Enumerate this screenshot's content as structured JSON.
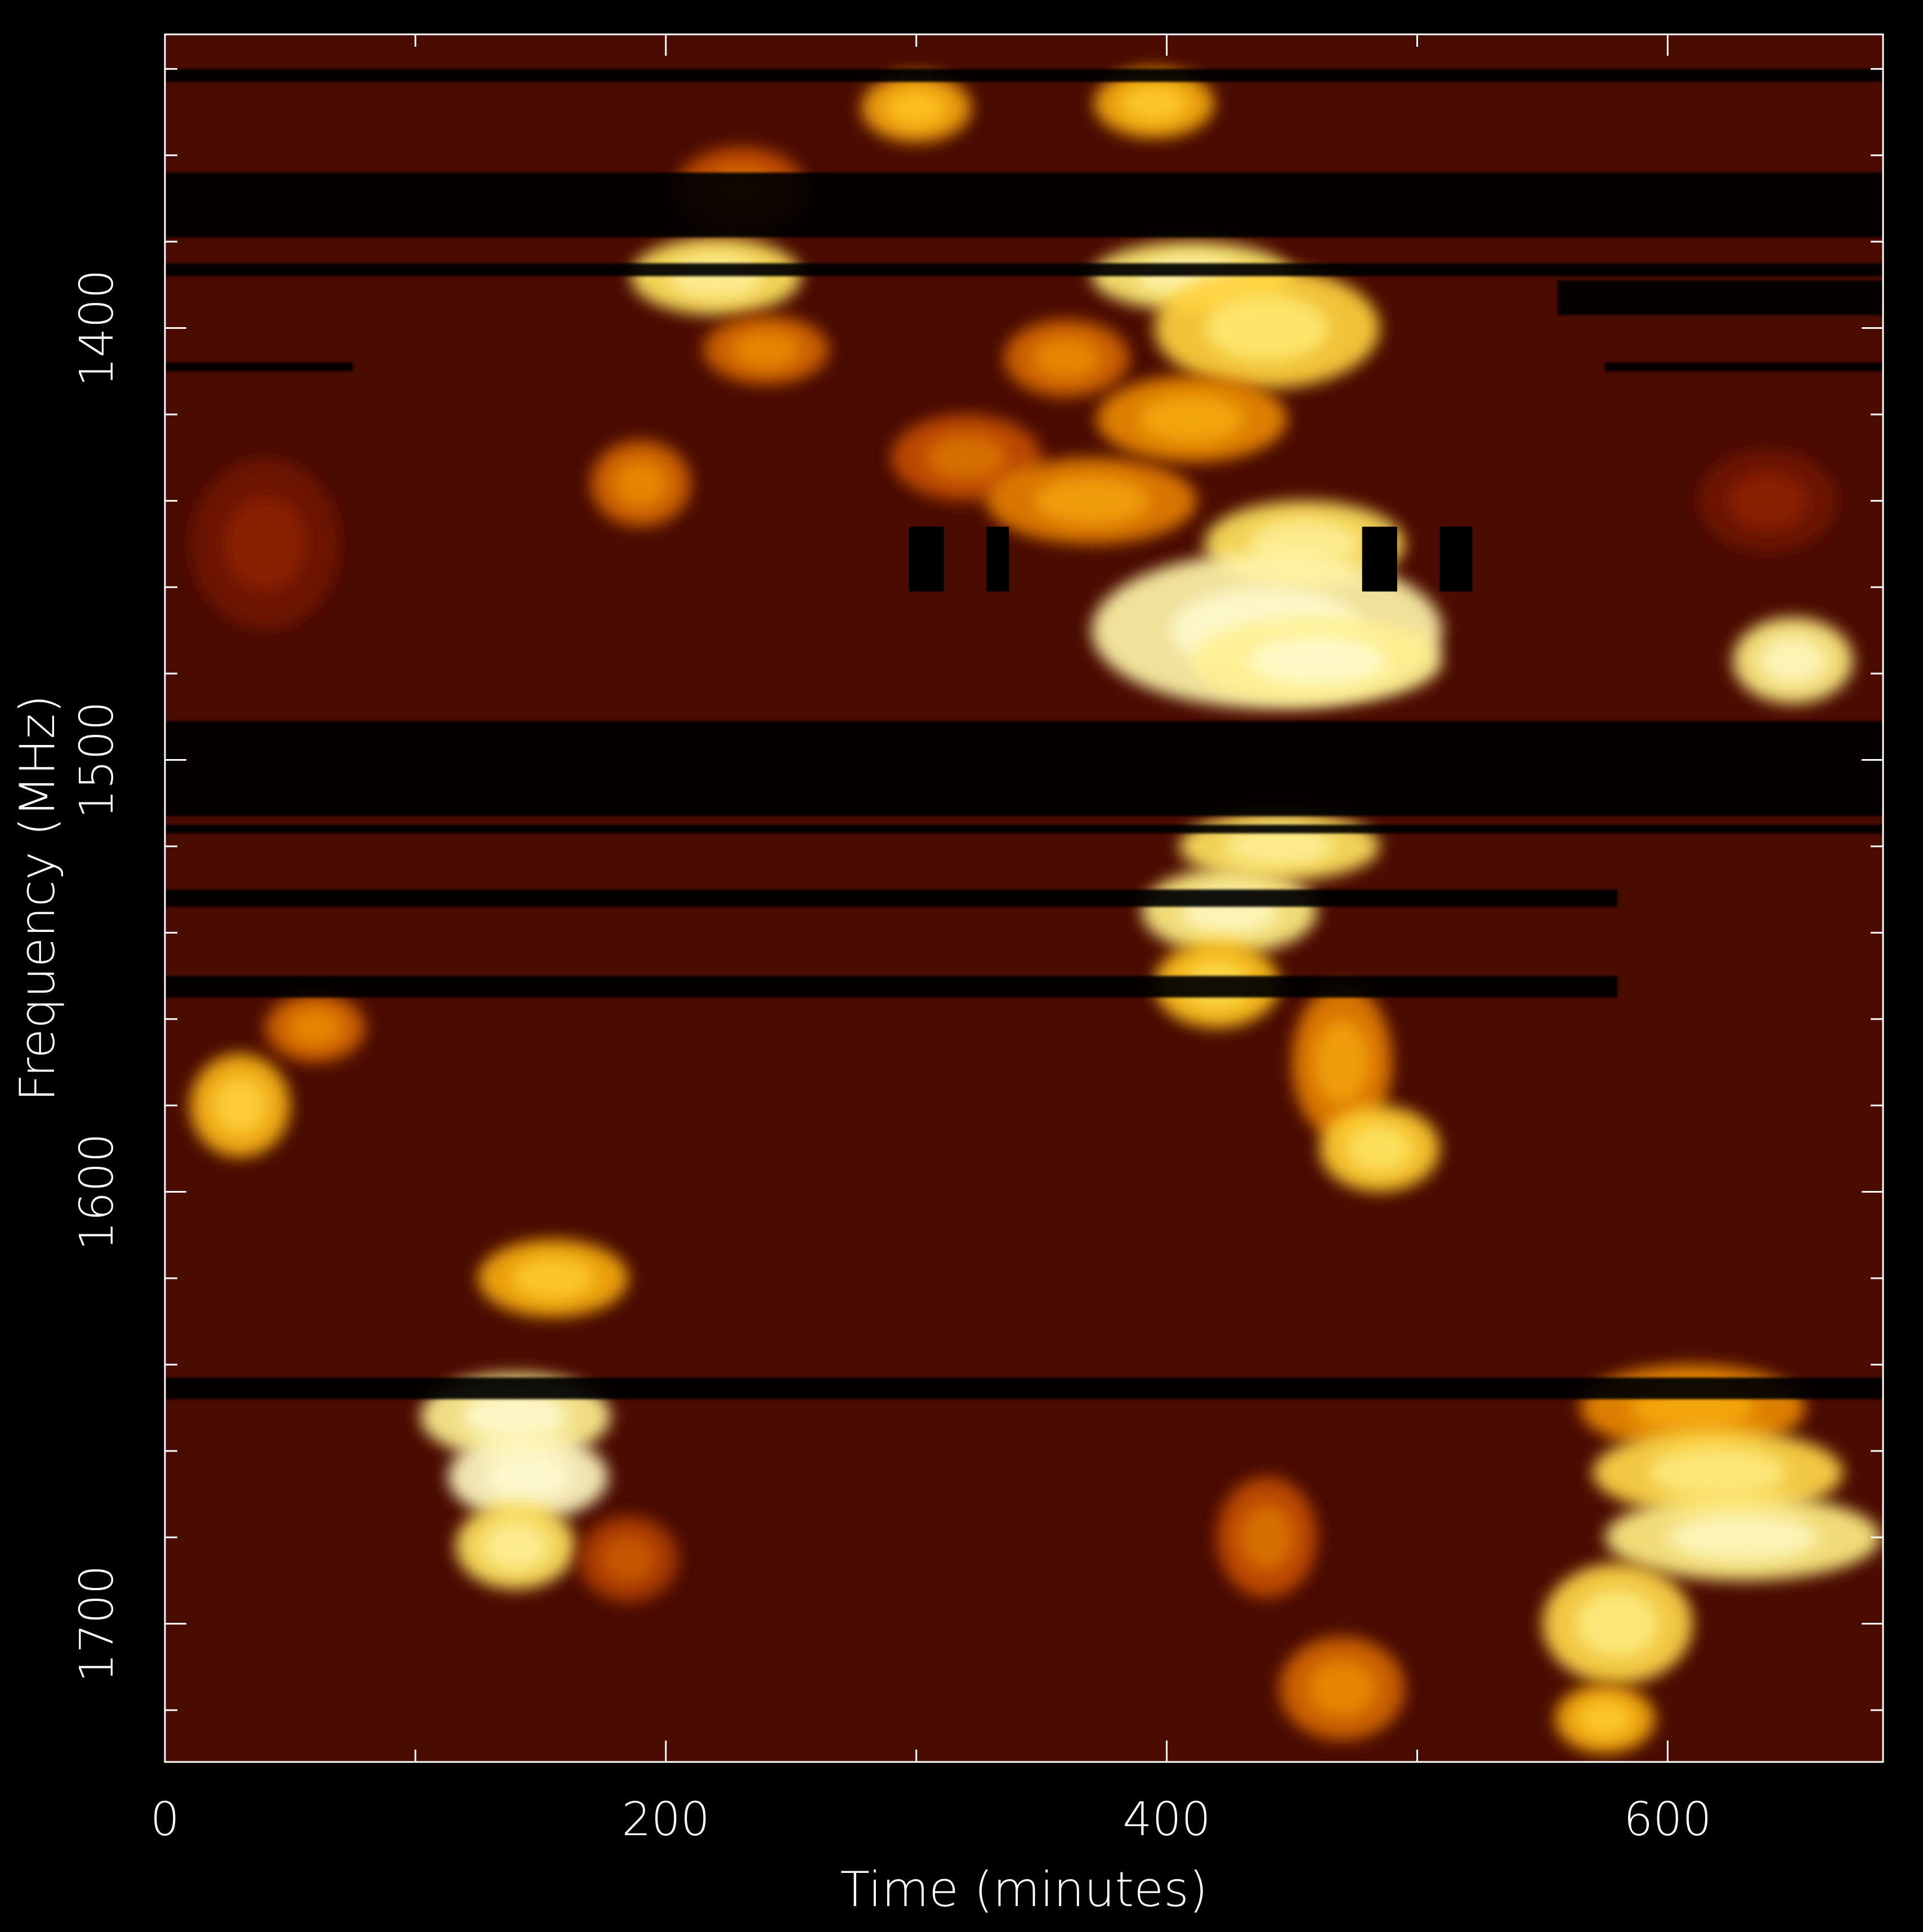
{
  "chart_data": {
    "type": "heatmap",
    "title": "",
    "xlabel": "Time (minutes)",
    "ylabel": "Frequency (MHz)",
    "xlim": [
      0,
      686
    ],
    "ylim": [
      1732,
      1332
    ],
    "x_ticks": [
      0,
      200,
      400,
      600
    ],
    "x_tick_labels": [
      "0",
      "200",
      "400",
      "600"
    ],
    "x_minor_ticks": [
      100,
      300,
      500
    ],
    "y_ticks": [
      1400,
      1500,
      1600,
      1700
    ],
    "y_tick_labels": [
      "1400",
      "1500",
      "1600",
      "1700"
    ],
    "y_minor_ticks": [
      1340,
      1360,
      1380,
      1420,
      1440,
      1460,
      1480,
      1520,
      1540,
      1560,
      1580,
      1620,
      1640,
      1660,
      1680,
      1720
    ],
    "colormap": [
      "#000000",
      "#3a0700",
      "#5e1000",
      "#8c2200",
      "#c24e00",
      "#eb8a00",
      "#ffc21a",
      "#ffea6e",
      "#fffbd0"
    ],
    "background_level": 0.18,
    "bright_regions": [
      {
        "t": 300,
        "f": 1349,
        "dt": 22,
        "df": 8,
        "v": 0.68
      },
      {
        "t": 395,
        "f": 1348,
        "dt": 24,
        "df": 8,
        "v": 0.7
      },
      {
        "t": 230,
        "f": 1368,
        "dt": 26,
        "df": 10,
        "v": 0.5
      },
      {
        "t": 220,
        "f": 1388,
        "dt": 34,
        "df": 9,
        "v": 0.85
      },
      {
        "t": 240,
        "f": 1405,
        "dt": 25,
        "df": 8,
        "v": 0.55
      },
      {
        "t": 410,
        "f": 1388,
        "dt": 40,
        "df": 8,
        "v": 0.88
      },
      {
        "t": 440,
        "f": 1400,
        "dt": 45,
        "df": 14,
        "v": 0.8
      },
      {
        "t": 360,
        "f": 1407,
        "dt": 25,
        "df": 9,
        "v": 0.55
      },
      {
        "t": 410,
        "f": 1421,
        "dt": 38,
        "df": 10,
        "v": 0.62
      },
      {
        "t": 320,
        "f": 1430,
        "dt": 30,
        "df": 10,
        "v": 0.5
      },
      {
        "t": 370,
        "f": 1440,
        "dt": 42,
        "df": 10,
        "v": 0.6
      },
      {
        "t": 190,
        "f": 1436,
        "dt": 20,
        "df": 10,
        "v": 0.55
      },
      {
        "t": 455,
        "f": 1450,
        "dt": 40,
        "df": 10,
        "v": 0.85
      },
      {
        "t": 440,
        "f": 1470,
        "dt": 70,
        "df": 18,
        "v": 0.95
      },
      {
        "t": 460,
        "f": 1477,
        "dt": 50,
        "df": 10,
        "v": 0.92
      },
      {
        "t": 650,
        "f": 1477,
        "dt": 24,
        "df": 10,
        "v": 0.9
      },
      {
        "t": 445,
        "f": 1520,
        "dt": 40,
        "df": 8,
        "v": 0.85
      },
      {
        "t": 425,
        "f": 1535,
        "dt": 35,
        "df": 10,
        "v": 0.9
      },
      {
        "t": 420,
        "f": 1552,
        "dt": 25,
        "df": 10,
        "v": 0.75
      },
      {
        "t": 470,
        "f": 1570,
        "dt": 20,
        "df": 18,
        "v": 0.6
      },
      {
        "t": 485,
        "f": 1590,
        "dt": 24,
        "df": 10,
        "v": 0.78
      },
      {
        "t": 30,
        "f": 1580,
        "dt": 20,
        "df": 12,
        "v": 0.72
      },
      {
        "t": 60,
        "f": 1562,
        "dt": 20,
        "df": 8,
        "v": 0.55
      },
      {
        "t": 155,
        "f": 1620,
        "dt": 30,
        "df": 9,
        "v": 0.7
      },
      {
        "t": 140,
        "f": 1652,
        "dt": 38,
        "df": 10,
        "v": 0.92
      },
      {
        "t": 145,
        "f": 1666,
        "dt": 32,
        "df": 10,
        "v": 0.98
      },
      {
        "t": 140,
        "f": 1682,
        "dt": 24,
        "df": 10,
        "v": 0.85
      },
      {
        "t": 185,
        "f": 1685,
        "dt": 20,
        "df": 10,
        "v": 0.45
      },
      {
        "t": 610,
        "f": 1650,
        "dt": 45,
        "df": 10,
        "v": 0.62
      },
      {
        "t": 620,
        "f": 1665,
        "dt": 50,
        "df": 10,
        "v": 0.82
      },
      {
        "t": 630,
        "f": 1680,
        "dt": 55,
        "df": 10,
        "v": 0.9
      },
      {
        "t": 580,
        "f": 1700,
        "dt": 30,
        "df": 14,
        "v": 0.82
      },
      {
        "t": 575,
        "f": 1722,
        "dt": 20,
        "df": 8,
        "v": 0.7
      },
      {
        "t": 470,
        "f": 1715,
        "dt": 25,
        "df": 12,
        "v": 0.55
      },
      {
        "t": 440,
        "f": 1680,
        "dt": 20,
        "df": 14,
        "v": 0.5
      },
      {
        "t": 640,
        "f": 1440,
        "dt": 28,
        "df": 12,
        "v": 0.3
      },
      {
        "t": 40,
        "f": 1450,
        "dt": 30,
        "df": 20,
        "v": 0.3
      }
    ],
    "rfi_bands": [
      {
        "f0": 1340,
        "f1": 1343,
        "t0": 0,
        "t1": 686
      },
      {
        "f0": 1364,
        "f1": 1379,
        "t0": 0,
        "t1": 686
      },
      {
        "f0": 1385,
        "f1": 1388,
        "t0": 0,
        "t1": 686
      },
      {
        "f0": 1389,
        "f1": 1397,
        "t0": 556,
        "t1": 686
      },
      {
        "f0": 1408,
        "f1": 1410,
        "t0": 0,
        "t1": 75
      },
      {
        "f0": 1408,
        "f1": 1410,
        "t0": 575,
        "t1": 686
      },
      {
        "f0": 1491,
        "f1": 1513,
        "t0": 0,
        "t1": 686
      },
      {
        "f0": 1515,
        "f1": 1517,
        "t0": 0,
        "t1": 686
      },
      {
        "f0": 1530,
        "f1": 1534,
        "t0": 0,
        "t1": 580
      },
      {
        "f0": 1550,
        "f1": 1555,
        "t0": 0,
        "t1": 580
      },
      {
        "f0": 1643,
        "f1": 1648,
        "t0": 0,
        "t1": 686
      }
    ],
    "rfi_blocks": [
      {
        "f0": 1446,
        "f1": 1461,
        "t0": 297,
        "t1": 311
      },
      {
        "f0": 1446,
        "f1": 1461,
        "t0": 328,
        "t1": 337
      },
      {
        "f0": 1446,
        "f1": 1461,
        "t0": 478,
        "t1": 492
      },
      {
        "f0": 1446,
        "f1": 1461,
        "t0": 509,
        "t1": 522
      }
    ]
  }
}
